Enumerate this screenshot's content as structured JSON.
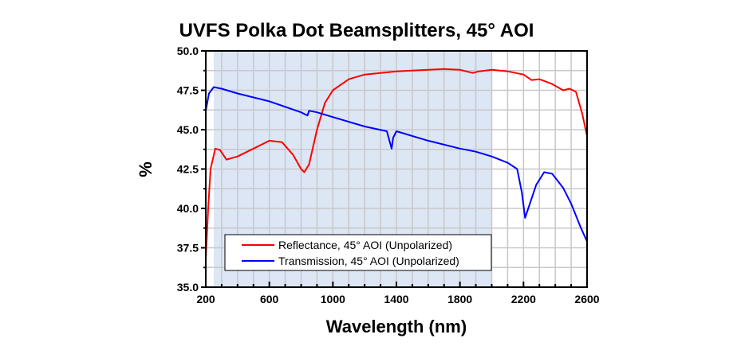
{
  "chart_data": {
    "type": "line",
    "title": "UVFS Polka Dot Beamsplitters, 45° AOI",
    "xlabel": "Wavelength (nm)",
    "ylabel": "%",
    "xlim": [
      200,
      2600
    ],
    "ylim": [
      35.0,
      50.0
    ],
    "x_ticks": [
      200,
      600,
      1000,
      1400,
      1800,
      2200,
      2600
    ],
    "x_tick_labels": [
      "200",
      "600",
      "1000",
      "1400",
      "1800",
      "2200",
      "2600"
    ],
    "x_minor_step": 100,
    "y_ticks": [
      35.0,
      37.5,
      40.0,
      42.5,
      45.0,
      47.5,
      50.0
    ],
    "y_tick_labels": [
      "35.0",
      "37.5",
      "40.0",
      "42.5",
      "45.0",
      "47.5",
      "50.0"
    ],
    "y_minor_step": 1.25,
    "grid": true,
    "shaded_region": {
      "x_from": 250,
      "x_to": 2000,
      "color": "#dce6f5"
    },
    "legend_position": "bottom-left",
    "series": [
      {
        "name": "Reflectance, 45° AOI (Unpolarized)",
        "color": "#ff0000",
        "x": [
          200,
          215,
          230,
          260,
          290,
          330,
          400,
          500,
          600,
          680,
          750,
          800,
          820,
          850,
          900,
          950,
          1000,
          1100,
          1200,
          1400,
          1600,
          1700,
          1800,
          1880,
          1920,
          2000,
          2100,
          2200,
          2250,
          2300,
          2380,
          2450,
          2490,
          2530,
          2570,
          2600
        ],
        "values": [
          36.8,
          40.0,
          42.5,
          43.8,
          43.7,
          43.1,
          43.3,
          43.8,
          44.3,
          44.2,
          43.4,
          42.5,
          42.3,
          42.8,
          45.0,
          46.7,
          47.5,
          48.2,
          48.5,
          48.7,
          48.8,
          48.85,
          48.8,
          48.6,
          48.7,
          48.8,
          48.7,
          48.5,
          48.15,
          48.2,
          47.9,
          47.5,
          47.6,
          47.4,
          46.0,
          44.6
        ]
      },
      {
        "name": "Transmission, 45° AOI (Unpolarized)",
        "color": "#0000ff",
        "x": [
          200,
          220,
          250,
          300,
          400,
          600,
          800,
          840,
          850,
          900,
          1000,
          1200,
          1340,
          1370,
          1380,
          1400,
          1600,
          1800,
          1850,
          1900,
          2000,
          2100,
          2160,
          2190,
          2210,
          2230,
          2280,
          2330,
          2380,
          2450,
          2500,
          2560,
          2600
        ],
        "values": [
          46.2,
          47.3,
          47.7,
          47.6,
          47.3,
          46.8,
          46.1,
          45.9,
          46.2,
          46.1,
          45.8,
          45.2,
          44.9,
          43.8,
          44.5,
          44.9,
          44.3,
          43.8,
          43.7,
          43.6,
          43.3,
          42.9,
          42.5,
          41.0,
          39.4,
          40.0,
          41.5,
          42.3,
          42.2,
          41.3,
          40.3,
          38.8,
          37.9
        ]
      }
    ]
  }
}
